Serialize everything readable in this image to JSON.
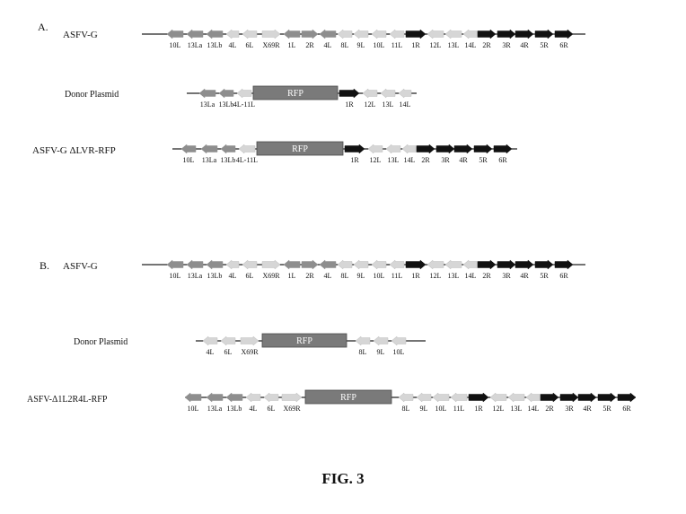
{
  "panel_a": {
    "letter": "A.",
    "tracks": [
      {
        "name": "ASFV-G",
        "line": [
          158,
          652
        ],
        "genes": [
          {
            "label": "10L",
            "shade": "mid",
            "dir": "L",
            "x": [
              186,
              204
            ]
          },
          {
            "label": "13La",
            "shade": "mid",
            "dir": "L",
            "x": [
              208,
              226
            ]
          },
          {
            "label": "13Lb",
            "shade": "mid",
            "dir": "L",
            "x": [
              230,
              248
            ]
          },
          {
            "label": "4L",
            "shade": "light",
            "dir": "L",
            "x": [
              252,
              266
            ]
          },
          {
            "label": "6L",
            "shade": "light",
            "dir": "L",
            "x": [
              270,
              286
            ]
          },
          {
            "label": "X69R",
            "shade": "light",
            "dir": "R",
            "x": [
              292,
              312
            ]
          },
          {
            "label": "1L",
            "shade": "mid",
            "dir": "L",
            "x": [
              316,
              334
            ]
          },
          {
            "label": "2R",
            "shade": "mid",
            "dir": "R",
            "x": [
              336,
              354
            ]
          },
          {
            "label": "4L",
            "shade": "mid",
            "dir": "L",
            "x": [
              356,
              374
            ]
          },
          {
            "label": "8L",
            "shade": "light",
            "dir": "L",
            "x": [
              376,
              392
            ]
          },
          {
            "label": "9L",
            "shade": "light",
            "dir": "L",
            "x": [
              394,
              410
            ]
          },
          {
            "label": "10L",
            "shade": "light",
            "dir": "L",
            "x": [
              414,
              430
            ]
          },
          {
            "label": "11L",
            "shade": "light",
            "dir": "L",
            "x": [
              434,
              450
            ]
          },
          {
            "label": "1R",
            "shade": "dark",
            "dir": "R",
            "x": [
              452,
              474
            ]
          },
          {
            "label": "12L",
            "shade": "light",
            "dir": "L",
            "x": [
              476,
              494
            ]
          },
          {
            "label": "13L",
            "shade": "light",
            "dir": "L",
            "x": [
              496,
              514
            ]
          },
          {
            "label": "14L",
            "shade": "light",
            "dir": "L",
            "x": [
              516,
              532
            ]
          },
          {
            "label": "2R",
            "shade": "dark",
            "dir": "R",
            "x": [
              532,
              552
            ]
          },
          {
            "label": "3R",
            "shade": "dark",
            "dir": "R",
            "x": [
              554,
              574
            ]
          },
          {
            "label": "4R",
            "shade": "dark",
            "dir": "R",
            "x": [
              574,
              594
            ]
          },
          {
            "label": "5R",
            "shade": "dark",
            "dir": "R",
            "x": [
              596,
              616
            ]
          },
          {
            "label": "6R",
            "shade": "dark",
            "dir": "R",
            "x": [
              618,
              638
            ]
          }
        ]
      },
      {
        "name": "Donor Plasmid",
        "line": [
          208,
          464
        ],
        "rfp": {
          "label": "RFP",
          "x": [
            282,
            376
          ]
        },
        "genes": [
          {
            "label": "13La",
            "shade": "mid",
            "dir": "L",
            "x": [
              222,
              240
            ]
          },
          {
            "label": "13Lb",
            "shade": "mid",
            "dir": "L",
            "x": [
              244,
              260
            ]
          },
          {
            "label": "4L-11L",
            "shade": "light",
            "dir": "L",
            "x": [
              264,
              280
            ]
          },
          {
            "label": "1R",
            "shade": "dark",
            "dir": "R",
            "x": [
              378,
              400
            ]
          },
          {
            "label": "12L",
            "shade": "light",
            "dir": "L",
            "x": [
              404,
              420
            ]
          },
          {
            "label": "13L",
            "shade": "light",
            "dir": "L",
            "x": [
              424,
              440
            ]
          },
          {
            "label": "14L",
            "shade": "light",
            "dir": "L",
            "x": [
              444,
              458
            ]
          }
        ]
      },
      {
        "name": "ASFV-G ΔLVR-RFP",
        "line": [
          192,
          576
        ],
        "rfp": {
          "label": "RFP",
          "x": [
            286,
            382
          ]
        },
        "genes": [
          {
            "label": "10L",
            "shade": "mid",
            "dir": "L",
            "x": [
              202,
              218
            ]
          },
          {
            "label": "13La",
            "shade": "mid",
            "dir": "L",
            "x": [
              224,
              242
            ]
          },
          {
            "label": "13Lb",
            "shade": "mid",
            "dir": "L",
            "x": [
              246,
              262
            ]
          },
          {
            "label": "4L-11L",
            "shade": "light",
            "dir": "L",
            "x": [
              266,
              284
            ]
          },
          {
            "label": "1R",
            "shade": "dark",
            "dir": "R",
            "x": [
              384,
              406
            ]
          },
          {
            "label": "12L",
            "shade": "light",
            "dir": "L",
            "x": [
              410,
              426
            ]
          },
          {
            "label": "13L",
            "shade": "light",
            "dir": "L",
            "x": [
              430,
              446
            ]
          },
          {
            "label": "14L",
            "shade": "light",
            "dir": "L",
            "x": [
              448,
              464
            ]
          },
          {
            "label": "2R",
            "shade": "dark",
            "dir": "R",
            "x": [
              464,
              484
            ]
          },
          {
            "label": "3R",
            "shade": "dark",
            "dir": "R",
            "x": [
              486,
              506
            ]
          },
          {
            "label": "4R",
            "shade": "dark",
            "dir": "R",
            "x": [
              506,
              526
            ]
          },
          {
            "label": "5R",
            "shade": "dark",
            "dir": "R",
            "x": [
              528,
              548
            ]
          },
          {
            "label": "6R",
            "shade": "dark",
            "dir": "R",
            "x": [
              550,
              570
            ]
          }
        ]
      }
    ]
  },
  "panel_b": {
    "letter": "B.",
    "tracks": [
      {
        "name": "ASFV-G",
        "line": [
          158,
          652
        ],
        "genes": [
          {
            "label": "10L",
            "shade": "mid",
            "dir": "L",
            "x": [
              186,
              204
            ]
          },
          {
            "label": "13La",
            "shade": "mid",
            "dir": "L",
            "x": [
              208,
              226
            ]
          },
          {
            "label": "13Lb",
            "shade": "mid",
            "dir": "L",
            "x": [
              230,
              248
            ]
          },
          {
            "label": "4L",
            "shade": "light",
            "dir": "L",
            "x": [
              252,
              266
            ]
          },
          {
            "label": "6L",
            "shade": "light",
            "dir": "L",
            "x": [
              270,
              286
            ]
          },
          {
            "label": "X69R",
            "shade": "light",
            "dir": "R",
            "x": [
              292,
              312
            ]
          },
          {
            "label": "1L",
            "shade": "mid",
            "dir": "L",
            "x": [
              316,
              334
            ]
          },
          {
            "label": "2R",
            "shade": "mid",
            "dir": "R",
            "x": [
              336,
              354
            ]
          },
          {
            "label": "4L",
            "shade": "mid",
            "dir": "L",
            "x": [
              356,
              374
            ]
          },
          {
            "label": "8L",
            "shade": "light",
            "dir": "L",
            "x": [
              376,
              392
            ]
          },
          {
            "label": "9L",
            "shade": "light",
            "dir": "L",
            "x": [
              394,
              410
            ]
          },
          {
            "label": "10L",
            "shade": "light",
            "dir": "L",
            "x": [
              414,
              430
            ]
          },
          {
            "label": "11L",
            "shade": "light",
            "dir": "L",
            "x": [
              434,
              450
            ]
          },
          {
            "label": "1R",
            "shade": "dark",
            "dir": "R",
            "x": [
              452,
              474
            ]
          },
          {
            "label": "12L",
            "shade": "light",
            "dir": "L",
            "x": [
              476,
              494
            ]
          },
          {
            "label": "13L",
            "shade": "light",
            "dir": "L",
            "x": [
              496,
              514
            ]
          },
          {
            "label": "14L",
            "shade": "light",
            "dir": "L",
            "x": [
              516,
              532
            ]
          },
          {
            "label": "2R",
            "shade": "dark",
            "dir": "R",
            "x": [
              532,
              552
            ]
          },
          {
            "label": "3R",
            "shade": "dark",
            "dir": "R",
            "x": [
              554,
              574
            ]
          },
          {
            "label": "4R",
            "shade": "dark",
            "dir": "R",
            "x": [
              574,
              594
            ]
          },
          {
            "label": "5R",
            "shade": "dark",
            "dir": "R",
            "x": [
              596,
              616
            ]
          },
          {
            "label": "6R",
            "shade": "dark",
            "dir": "R",
            "x": [
              618,
              638
            ]
          }
        ]
      },
      {
        "name": "Donor Plasmid",
        "line": [
          218,
          474
        ],
        "rfp": {
          "label": "RFP",
          "x": [
            292,
            386
          ]
        },
        "genes": [
          {
            "label": "4L",
            "shade": "light",
            "dir": "L",
            "x": [
              226,
              242
            ]
          },
          {
            "label": "6L",
            "shade": "light",
            "dir": "L",
            "x": [
              246,
              262
            ]
          },
          {
            "label": "X69R",
            "shade": "light",
            "dir": "R",
            "x": [
              268,
              288
            ]
          },
          {
            "label": "8L",
            "shade": "light",
            "dir": "L",
            "x": [
              396,
              412
            ]
          },
          {
            "label": "9L",
            "shade": "light",
            "dir": "L",
            "x": [
              416,
              432
            ]
          },
          {
            "label": "10L",
            "shade": "light",
            "dir": "L",
            "x": [
              436,
              452
            ]
          }
        ]
      },
      {
        "name": "ASFV-Δ1L2R4L-RFP",
        "line": [
          206,
          708
        ],
        "rfp": {
          "label": "RFP",
          "x": [
            340,
            436
          ]
        },
        "genes": [
          {
            "label": "10L",
            "shade": "mid",
            "dir": "L",
            "x": [
              206,
              224
            ]
          },
          {
            "label": "13La",
            "shade": "mid",
            "dir": "L",
            "x": [
              230,
              248
            ]
          },
          {
            "label": "13Lb",
            "shade": "mid",
            "dir": "L",
            "x": [
              252,
              270
            ]
          },
          {
            "label": "4L",
            "shade": "light",
            "dir": "L",
            "x": [
              274,
              290
            ]
          },
          {
            "label": "6L",
            "shade": "light",
            "dir": "L",
            "x": [
              294,
              310
            ]
          },
          {
            "label": "X69R",
            "shade": "light",
            "dir": "R",
            "x": [
              314,
              336
            ]
          },
          {
            "label": "8L",
            "shade": "light",
            "dir": "L",
            "x": [
              444,
              460
            ]
          },
          {
            "label": "9L",
            "shade": "light",
            "dir": "L",
            "x": [
              464,
              480
            ]
          },
          {
            "label": "10L",
            "shade": "light",
            "dir": "L",
            "x": [
              482,
              500
            ]
          },
          {
            "label": "11L",
            "shade": "light",
            "dir": "L",
            "x": [
              502,
              520
            ]
          },
          {
            "label": "1R",
            "shade": "dark",
            "dir": "R",
            "x": [
              522,
              544
            ]
          },
          {
            "label": "12L",
            "shade": "light",
            "dir": "L",
            "x": [
              546,
              564
            ]
          },
          {
            "label": "13L",
            "shade": "light",
            "dir": "L",
            "x": [
              566,
              584
            ]
          },
          {
            "label": "14L",
            "shade": "light",
            "dir": "L",
            "x": [
              586,
              602
            ]
          },
          {
            "label": "2R",
            "shade": "dark",
            "dir": "R",
            "x": [
              602,
              622
            ]
          },
          {
            "label": "3R",
            "shade": "dark",
            "dir": "R",
            "x": [
              624,
              644
            ]
          },
          {
            "label": "4R",
            "shade": "dark",
            "dir": "R",
            "x": [
              644,
              664
            ]
          },
          {
            "label": "5R",
            "shade": "dark",
            "dir": "R",
            "x": [
              666,
              686
            ]
          },
          {
            "label": "6R",
            "shade": "dark",
            "dir": "R",
            "x": [
              688,
              708
            ]
          }
        ]
      }
    ]
  },
  "caption": "FIG. 3",
  "colors": {
    "dark": "#111111",
    "mid": "#8e8e8e",
    "light": "#d6d6d6",
    "rfp": "#7a7a7a",
    "line": "#222222"
  }
}
